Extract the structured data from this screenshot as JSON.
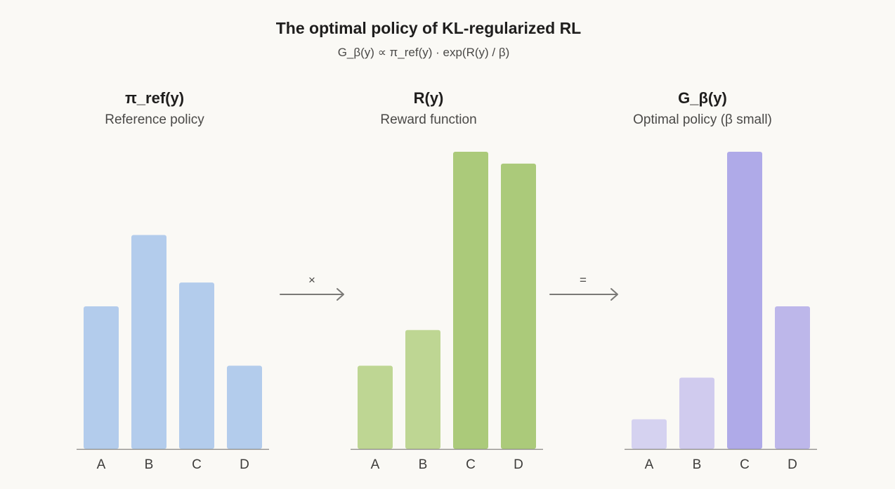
{
  "title": "The optimal policy of KL-regularized RL",
  "formula": "G_β(y) ∝ π_ref(y) · exp(R(y) / β)",
  "operators": [
    "×",
    "="
  ],
  "chart_data": [
    {
      "type": "bar",
      "title": "π_ref(y)",
      "subtitle": "Reference policy",
      "categories": [
        "A",
        "B",
        "C",
        "D"
      ],
      "values": [
        0.48,
        0.72,
        0.56,
        0.28
      ],
      "colors": [
        "#b3ccec",
        "#b3ccec",
        "#b3ccec",
        "#b3ccec"
      ],
      "ylim": [
        0,
        1
      ],
      "grid": false
    },
    {
      "type": "bar",
      "title": "R(y)",
      "subtitle": "Reward function",
      "categories": [
        "A",
        "B",
        "C",
        "D"
      ],
      "values": [
        0.28,
        0.4,
        1.0,
        0.96
      ],
      "colors": [
        "#bed693",
        "#bed693",
        "#abca7a",
        "#abca7a"
      ],
      "ylim": [
        0,
        1
      ],
      "grid": false
    },
    {
      "type": "bar",
      "title": "G_β(y)",
      "subtitle": "Optimal policy (β small)",
      "categories": [
        "A",
        "B",
        "C",
        "D"
      ],
      "values": [
        0.1,
        0.24,
        1.0,
        0.48
      ],
      "colors": [
        "#d5d2f0",
        "#d0cbee",
        "#afaae8",
        "#bdb7ea"
      ],
      "ylim": [
        0,
        1
      ],
      "grid": false
    }
  ]
}
